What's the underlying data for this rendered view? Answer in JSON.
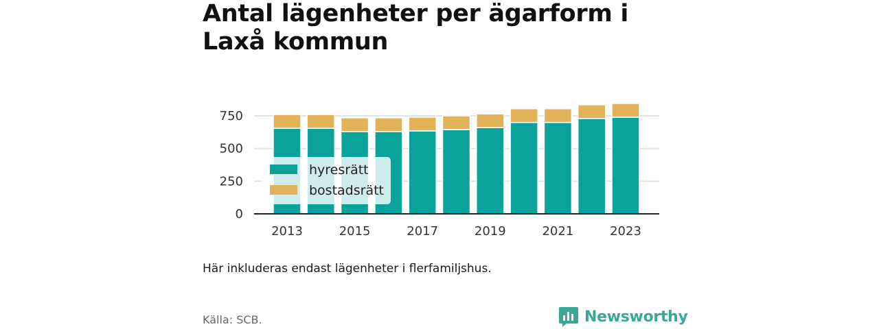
{
  "title": "Antal lägenheter per ägarform i Laxå kommun",
  "note": "Här inkluderas endast lägenheter i flerfamiljshus.",
  "source": "Källa: SCB.",
  "brand": {
    "name": "Newsworthy",
    "icon": "newsworthy-logo-icon",
    "color": "#3aa897"
  },
  "colors": {
    "hyresratt": "#0aa29b",
    "bostadsratt": "#e2b259",
    "grid": "#e3e3e3",
    "axis": "#222222"
  },
  "chart_data": {
    "type": "bar",
    "stacked": true,
    "categories": [
      "2013",
      "2014",
      "2015",
      "2016",
      "2017",
      "2018",
      "2019",
      "2020",
      "2021",
      "2022",
      "2023"
    ],
    "x_tick_labels": [
      "2013",
      "2015",
      "2017",
      "2019",
      "2021",
      "2023"
    ],
    "series": [
      {
        "name": "hyresrätt",
        "color": "#0aa29b",
        "values": [
          655,
          655,
          630,
          630,
          635,
          645,
          660,
          700,
          700,
          730,
          740
        ]
      },
      {
        "name": "bostadsrätt",
        "color": "#e2b259",
        "values": [
          105,
          105,
          105,
          105,
          105,
          105,
          105,
          105,
          105,
          105,
          105
        ]
      }
    ],
    "ylim": [
      0,
      850
    ],
    "y_ticks": [
      0,
      250,
      500,
      750
    ],
    "grid": true,
    "legend_position": "left-middle inside plot"
  }
}
